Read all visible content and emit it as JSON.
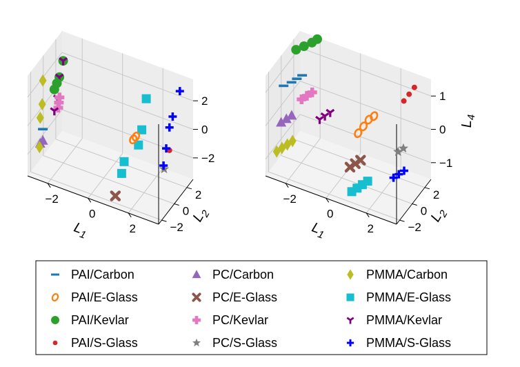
{
  "colors": {
    "PAI/Carbon": "#1f77b4",
    "PAI/E-Glass": "#ff7f0e",
    "PAI/Kevlar": "#2ca02c",
    "PAI/S-Glass": "#d62728",
    "PC/Carbon": "#9467bd",
    "PC/E-Glass": "#8c564b",
    "PC/Kevlar": "#e377c2",
    "PC/S-Glass": "#7f7f7f",
    "PMMA/Carbon": "#bcbd22",
    "PMMA/E-Glass": "#17becf",
    "PMMA/Kevlar": "#800080",
    "PMMA/S-Glass": "#0000ff"
  },
  "chart_data": [
    {
      "type": "scatter3d",
      "title": "",
      "xlabel": "L1",
      "ylabel": "L2",
      "zlabel": "",
      "xlim": [
        -3,
        3.5
      ],
      "ylim": [
        -2.5,
        3
      ],
      "zlim": [
        -3.5,
        3.5
      ],
      "xticks": [
        "−2",
        "0",
        "2"
      ],
      "yticks": [
        "−2",
        "0",
        "2"
      ],
      "zticks": [
        "−2",
        "0",
        "2"
      ],
      "grid": true,
      "series": [
        {
          "name": "PAI/Carbon",
          "marker": "hline",
          "points": [
            [
              -2.4,
              -2,
              -0.2
            ]
          ]
        },
        {
          "name": "PAI/E-Glass",
          "marker": "ring",
          "points": [
            [
              1.4,
              0.2,
              -0.2
            ],
            [
              1.5,
              0.3,
              0
            ]
          ]
        },
        {
          "name": "PAI/Kevlar",
          "marker": "circle",
          "points": [
            [
              -2.2,
              0.6,
              3.2
            ],
            [
              -2.2,
              0,
              2.4
            ],
            [
              -2.2,
              -0.4,
              2.2
            ],
            [
              -2.2,
              -0.8,
              2
            ]
          ]
        },
        {
          "name": "PAI/S-Glass",
          "marker": "dot",
          "points": [
            [
              2.7,
              1.8,
              -1.2
            ]
          ]
        },
        {
          "name": "PC/Carbon",
          "marker": "triangle",
          "points": [
            [
              -2.4,
              -2,
              -1
            ],
            [
              -2.5,
              -2.1,
              -1.2
            ]
          ]
        },
        {
          "name": "PC/E-Glass",
          "marker": "x",
          "points": [
            [
              1.2,
              -2,
              -3
            ]
          ]
        },
        {
          "name": "PC/Kevlar",
          "marker": "plus",
          "points": [
            [
              -2.1,
              -0.5,
              0.6
            ],
            [
              -2.1,
              -0.4,
              0.9
            ],
            [
              -2.1,
              -0.3,
              1.2
            ]
          ]
        },
        {
          "name": "PC/S-Glass",
          "marker": "star",
          "points": [
            [
              2.5,
              1.6,
              -2.5
            ]
          ]
        },
        {
          "name": "PMMA/Carbon",
          "marker": "diamond",
          "points": [
            [
              -2.4,
              -2,
              3.2
            ],
            [
              -2.4,
              -2.1,
              1.6
            ],
            [
              -2.5,
              -2.1,
              0.6
            ],
            [
              -2.5,
              -2.2,
              -1.4
            ]
          ]
        },
        {
          "name": "PMMA/E-Glass",
          "marker": "square",
          "points": [
            [
              1.8,
              1,
              2.4
            ],
            [
              1.7,
              0.6,
              0.4
            ],
            [
              1.6,
              0.4,
              -0.6
            ],
            [
              1.2,
              -0.6,
              -1.4
            ],
            [
              1.2,
              -1,
              -2
            ]
          ]
        },
        {
          "name": "PMMA/Kevlar",
          "marker": "tri_down",
          "points": [
            [
              -2.2,
              0.6,
              3.2
            ],
            [
              -2.2,
              0,
              2.4
            ],
            [
              -2.2,
              -0.3,
              1.1
            ],
            [
              -2.2,
              -0.8,
              0.5
            ]
          ]
        },
        {
          "name": "PMMA/S-Glass",
          "marker": "plus_bold",
          "points": [
            [
              3,
              2.5,
              2.7
            ],
            [
              2.8,
              2,
              1.1
            ],
            [
              2.7,
              1.8,
              0.4
            ],
            [
              2.6,
              1.6,
              -1
            ],
            [
              2.5,
              1.5,
              -2.2
            ]
          ]
        }
      ]
    },
    {
      "type": "scatter3d",
      "title": "",
      "xlabel": "L1",
      "ylabel": "L2",
      "zlabel": "L4",
      "xlim": [
        -3,
        3.5
      ],
      "ylim": [
        -2.5,
        3
      ],
      "zlim": [
        -1.5,
        1.5
      ],
      "xticks": [
        "−2",
        "0",
        "2"
      ],
      "yticks": [
        "−2",
        "0",
        "2"
      ],
      "zticks": [
        "−1",
        "0",
        "1"
      ],
      "grid": true,
      "series": [
        {
          "name": "PAI/Carbon",
          "marker": "hline",
          "points": [
            [
              -2.3,
              -0.6,
              1
            ],
            [
              -2.1,
              -0.4,
              1.1
            ],
            [
              -1.9,
              -0.2,
              1.2
            ],
            [
              -2.6,
              -0.9,
              0.9
            ]
          ]
        },
        {
          "name": "PAI/E-Glass",
          "marker": "ring",
          "points": [
            [
              0.6,
              0.7,
              -0.2
            ],
            [
              0.8,
              0.9,
              0
            ],
            [
              1,
              1.1,
              0.2
            ],
            [
              1.2,
              1.3,
              0.3
            ]
          ]
        },
        {
          "name": "PAI/Kevlar",
          "marker": "circle",
          "points": [
            [
              -2.2,
              -0.2,
              1.9
            ],
            [
              -1.9,
              0.1,
              2
            ],
            [
              -1.6,
              0.4,
              2.1
            ],
            [
              -1.4,
              0.6,
              2.2
            ]
          ]
        },
        {
          "name": "PAI/S-Glass",
          "marker": "dot",
          "points": [
            [
              2.4,
              2.2,
              0.8
            ],
            [
              2.6,
              2.4,
              1
            ],
            [
              2.8,
              2.6,
              1.2
            ]
          ]
        },
        {
          "name": "PC/Carbon",
          "marker": "triangle",
          "points": [
            [
              -2.6,
              -1.3,
              -0.1
            ],
            [
              -2.4,
              -1.1,
              0
            ],
            [
              -2.2,
              -0.9,
              0.1
            ]
          ]
        },
        {
          "name": "PC/E-Glass",
          "marker": "x",
          "points": [
            [
              0.6,
              -0.6,
              -0.9
            ],
            [
              0.8,
              -0.4,
              -0.8
            ],
            [
              1,
              -0.2,
              -0.7
            ]
          ]
        },
        {
          "name": "PC/Kevlar",
          "marker": "plus",
          "points": [
            [
              -1.8,
              -0.6,
              0.6
            ],
            [
              -1.6,
              -0.4,
              0.7
            ],
            [
              -1.4,
              -0.2,
              0.8
            ]
          ]
        },
        {
          "name": "PC/S-Glass",
          "marker": "star",
          "points": [
            [
              2.3,
              1.6,
              -0.6
            ],
            [
              2.5,
              1.8,
              -0.5
            ]
          ]
        },
        {
          "name": "PMMA/Carbon",
          "marker": "diamond",
          "points": [
            [
              -2.6,
              -2,
              -0.8
            ],
            [
              -2.4,
              -1.8,
              -0.7
            ],
            [
              -2.2,
              -1.6,
              -0.6
            ],
            [
              -2,
              -1.4,
              -0.5
            ]
          ]
        },
        {
          "name": "PMMA/E-Glass",
          "marker": "square",
          "points": [
            [
              1,
              -1.6,
              -1.3
            ],
            [
              1.2,
              -1.4,
              -1.2
            ],
            [
              1.4,
              -1.2,
              -1.1
            ],
            [
              1.6,
              -1,
              -1
            ]
          ]
        },
        {
          "name": "PMMA/Kevlar",
          "marker": "tri_down",
          "points": [
            [
              -1,
              -0.3,
              0.1
            ],
            [
              -0.8,
              -0.1,
              0.2
            ],
            [
              -0.6,
              0.1,
              0.3
            ]
          ]
        },
        {
          "name": "PMMA/S-Glass",
          "marker": "plus_bold",
          "points": [
            [
              2.2,
              1.2,
              -1.3
            ],
            [
              2.4,
              1.4,
              -1.2
            ],
            [
              2.6,
              1.6,
              -1.1
            ]
          ]
        }
      ]
    }
  ],
  "legend": {
    "placement": "bottom",
    "items": [
      {
        "name": "PAI/Carbon",
        "marker": "hline"
      },
      {
        "name": "PAI/E-Glass",
        "marker": "ring"
      },
      {
        "name": "PAI/Kevlar",
        "marker": "circle"
      },
      {
        "name": "PAI/S-Glass",
        "marker": "dot"
      },
      {
        "name": "PC/Carbon",
        "marker": "triangle"
      },
      {
        "name": "PC/E-Glass",
        "marker": "x"
      },
      {
        "name": "PC/Kevlar",
        "marker": "plus"
      },
      {
        "name": "PC/S-Glass",
        "marker": "star"
      },
      {
        "name": "PMMA/Carbon",
        "marker": "diamond"
      },
      {
        "name": "PMMA/E-Glass",
        "marker": "square"
      },
      {
        "name": "PMMA/Kevlar",
        "marker": "tri_down"
      },
      {
        "name": "PMMA/S-Glass",
        "marker": "plus_bold"
      }
    ]
  }
}
